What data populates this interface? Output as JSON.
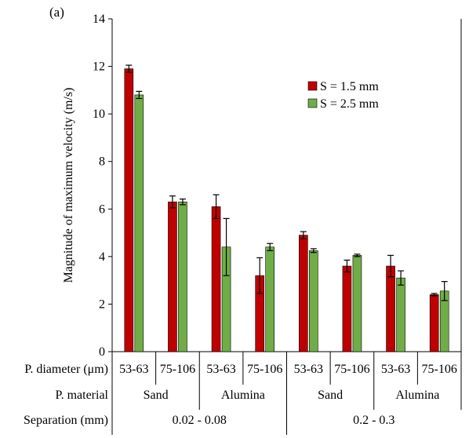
{
  "chart_data": {
    "type": "bar",
    "panel_label": "(a)",
    "ylabel": "Magnitude of maximum velocity (m/s)",
    "ylim": [
      0,
      14
    ],
    "yticks": [
      0,
      2,
      4,
      6,
      8,
      10,
      12,
      14
    ],
    "grid": false,
    "legend_position": "top-right",
    "categories": [
      "53-63",
      "75-106",
      "53-63",
      "75-106",
      "53-63",
      "75-106",
      "53-63",
      "75-106"
    ],
    "row_labels": {
      "diameter": "P. diameter (μm)",
      "material": "P. material",
      "separation": "Separation (mm)"
    },
    "material_groups": [
      {
        "label": "Sand",
        "span": 2
      },
      {
        "label": "Alumina",
        "span": 2
      },
      {
        "label": "Sand",
        "span": 2
      },
      {
        "label": "Alumina",
        "span": 2
      }
    ],
    "separation_groups": [
      {
        "label": "0.02 - 0.08",
        "span": 4
      },
      {
        "label": "0.2 - 0.3",
        "span": 4
      }
    ],
    "series": [
      {
        "name": "S = 1.5 mm",
        "color": "#c00000",
        "values": [
          11.9,
          6.3,
          6.1,
          3.2,
          4.9,
          3.6,
          3.6,
          2.4
        ],
        "errors": [
          0.15,
          0.25,
          0.5,
          0.75,
          0.15,
          0.25,
          0.45,
          0.05
        ]
      },
      {
        "name": "S = 2.5 mm",
        "color": "#70ad47",
        "values": [
          10.8,
          6.3,
          4.4,
          4.4,
          4.25,
          4.05,
          3.1,
          2.55
        ],
        "errors": [
          0.15,
          0.12,
          1.2,
          0.15,
          0.08,
          0.05,
          0.3,
          0.4
        ]
      }
    ]
  }
}
